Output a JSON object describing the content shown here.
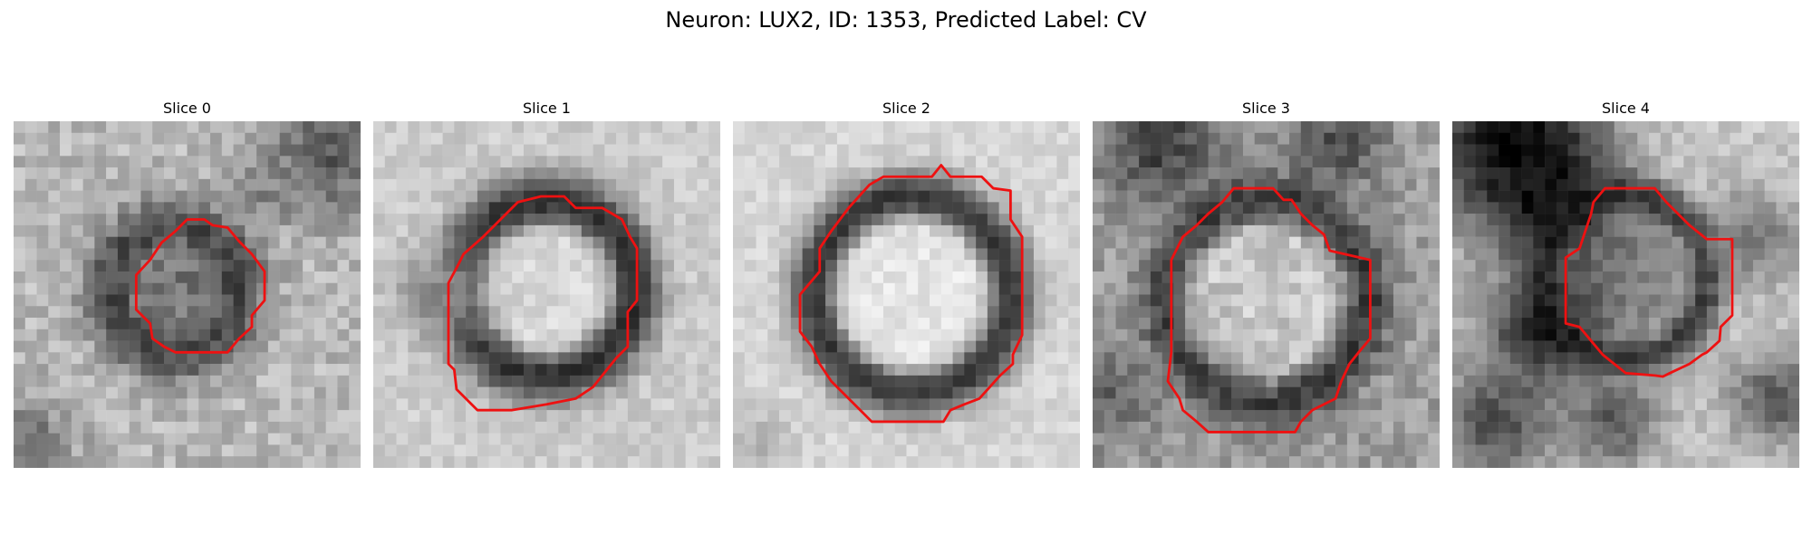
{
  "figure": {
    "title": "Neuron: LUX2, ID: 1353, Predicted Label: CV"
  },
  "panels": [
    {
      "title": "Slice 0"
    },
    {
      "title": "Slice 1"
    },
    {
      "title": "Slice 2"
    },
    {
      "title": "Slice 3"
    },
    {
      "title": "Slice 4"
    }
  ],
  "colors": {
    "contour": "#ee1111",
    "background": "#ffffff"
  }
}
